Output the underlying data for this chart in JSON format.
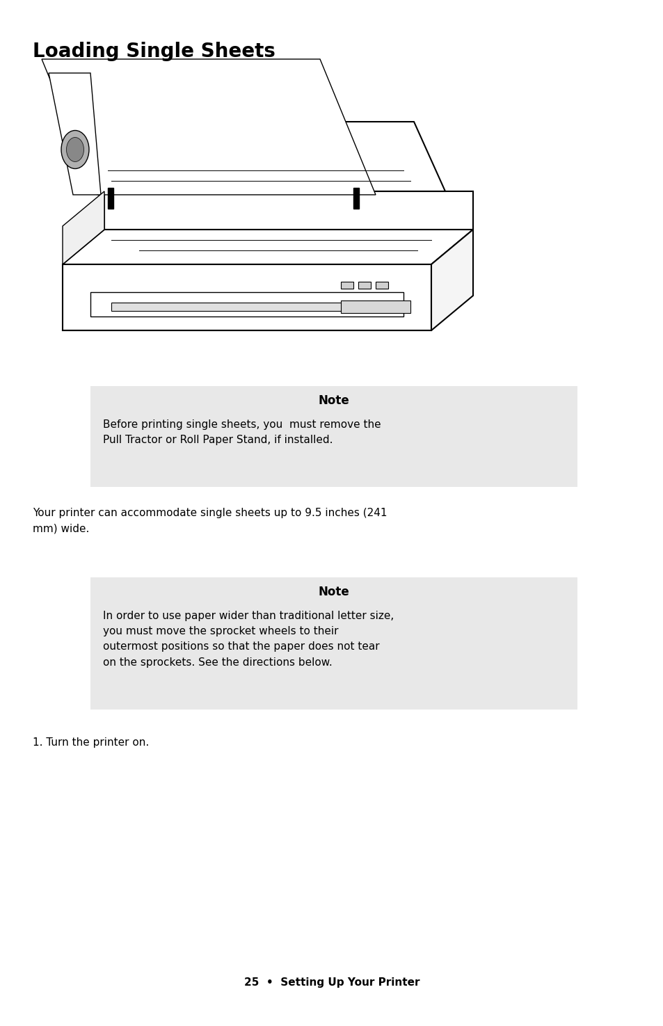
{
  "title": "Loading Single Sheets",
  "title_fontsize": 20,
  "bg_color": "#ffffff",
  "note1_title": "Note",
  "note1_text": "Before printing single sheets, you  must remove the\nPull Tractor or Roll Paper Stand, if installed.",
  "note1_bg": "#e8e8e8",
  "note2_title": "Note",
  "note2_text": "In order to use paper wider than traditional letter size,\nyou must move the sprocket wheels to their\noutermost positions so that the paper does not tear\non the sprockets. See the directions below.",
  "note2_bg": "#e8e8e8",
  "body_text1": "Your printer can accommodate single sheets up to 9.5 inches (241\nmm) wide.",
  "body_text2": "1. Turn the printer on.",
  "footer_text": "25  •  Setting Up Your Printer",
  "text_color": "#000000",
  "note_title_fontsize": 12,
  "note_body_fontsize": 11,
  "body_fontsize": 11,
  "footer_fontsize": 11
}
